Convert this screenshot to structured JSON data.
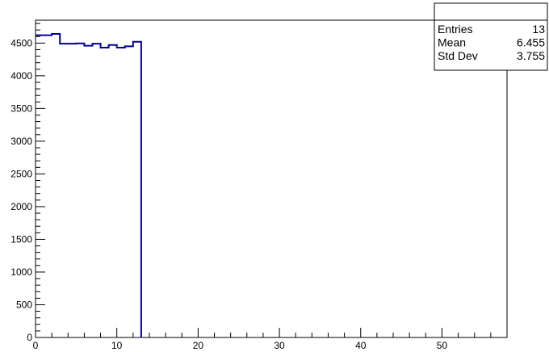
{
  "chart_data": {
    "type": "histogram",
    "title": "",
    "xlabel": "",
    "ylabel": "",
    "xlim": [
      0,
      58
    ],
    "ylim": [
      0,
      4850
    ],
    "grid": false,
    "legend": "top-right",
    "x_ticks": [
      0,
      10,
      20,
      30,
      40,
      50
    ],
    "y_ticks": [
      0,
      500,
      1000,
      1500,
      2000,
      2500,
      3000,
      3500,
      4000,
      4500
    ],
    "bin_edges": [
      0,
      1,
      2,
      3,
      4,
      5,
      6,
      7,
      8,
      9,
      10,
      11,
      12,
      13
    ],
    "values": [
      4620,
      4620,
      4640,
      4490,
      4490,
      4495,
      4460,
      4490,
      4430,
      4470,
      4430,
      4450,
      4520
    ],
    "line_color": "#000099",
    "stats": {
      "title": "",
      "rows": [
        {
          "label": "Entries",
          "value": "13"
        },
        {
          "label": "Mean",
          "value": "6.455"
        },
        {
          "label": "Std Dev",
          "value": "3.755"
        }
      ]
    }
  }
}
